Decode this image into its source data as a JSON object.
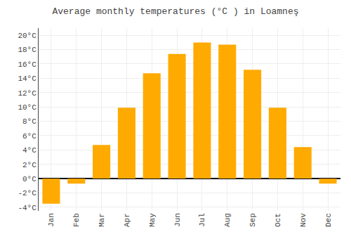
{
  "chart_data": {
    "type": "bar",
    "title": "Average monthly temperatures (°C ) in Loamneş",
    "categories": [
      "Jan",
      "Feb",
      "Mar",
      "Apr",
      "May",
      "Jun",
      "Jul",
      "Aug",
      "Sep",
      "Oct",
      "Nov",
      "Dec"
    ],
    "values": [
      -3.5,
      -0.7,
      4.7,
      9.9,
      14.7,
      17.4,
      19.0,
      18.7,
      15.2,
      9.9,
      4.4,
      -0.7
    ],
    "color": "#FFAA00",
    "ylim": [
      -4.5,
      21.0
    ],
    "yticks": [
      {
        "value": -4,
        "label": "-4°C"
      },
      {
        "value": -2,
        "label": "-2°C"
      },
      {
        "value": 0,
        "label": "0°C"
      },
      {
        "value": 2,
        "label": "2°C"
      },
      {
        "value": 4,
        "label": "4°C"
      },
      {
        "value": 6,
        "label": "6°C"
      },
      {
        "value": 8,
        "label": "8°C"
      },
      {
        "value": 10,
        "label": "10°C"
      },
      {
        "value": 12,
        "label": "12°C"
      },
      {
        "value": 14,
        "label": "14°C"
      },
      {
        "value": 16,
        "label": "16°C"
      },
      {
        "value": 18,
        "label": "18°C"
      },
      {
        "value": 20,
        "label": "20°C"
      }
    ],
    "grid": true
  }
}
